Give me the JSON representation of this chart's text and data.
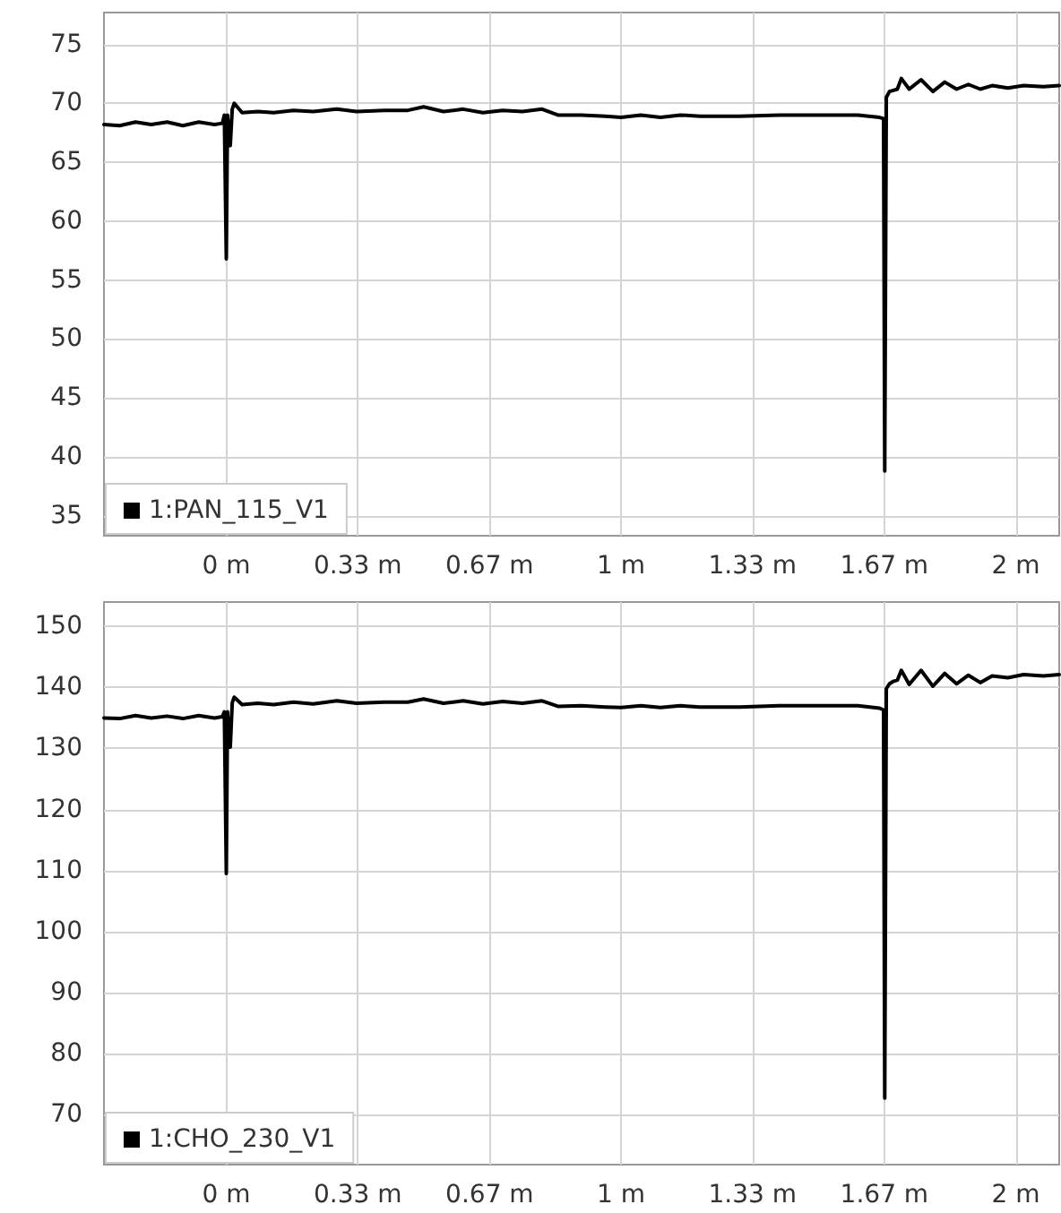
{
  "chart_data": [
    {
      "type": "line",
      "legend": "bottom left",
      "grid": true,
      "marker": "none",
      "xlim": [
        -0.31,
        2.11
      ],
      "ylim": [
        33.3,
        77.7
      ],
      "xticks": [
        {
          "value": 0,
          "label": "0 m"
        },
        {
          "value": 0.333,
          "label": "0.33 m"
        },
        {
          "value": 0.667,
          "label": "0.67 m"
        },
        {
          "value": 1,
          "label": "1 m"
        },
        {
          "value": 1.333,
          "label": "1.33 m"
        },
        {
          "value": 1.667,
          "label": "1.67 m"
        },
        {
          "value": 2,
          "label": "2 m"
        }
      ],
      "yticks": [
        35,
        40,
        45,
        50,
        55,
        60,
        65,
        70,
        75
      ],
      "x": [
        -0.31,
        -0.27,
        -0.23,
        -0.19,
        -0.15,
        -0.11,
        -0.07,
        -0.03,
        -0.01,
        -0.005,
        0.0,
        0.003,
        0.01,
        0.015,
        0.02,
        0.04,
        0.08,
        0.12,
        0.17,
        0.22,
        0.28,
        0.33,
        0.4,
        0.46,
        0.5,
        0.55,
        0.6,
        0.65,
        0.7,
        0.75,
        0.8,
        0.84,
        0.9,
        0.96,
        1.0,
        1.05,
        1.1,
        1.15,
        1.2,
        1.3,
        1.4,
        1.5,
        1.6,
        1.655,
        1.665,
        1.668,
        1.672,
        1.68,
        1.69,
        1.7,
        1.71,
        1.73,
        1.76,
        1.79,
        1.82,
        1.85,
        1.88,
        1.91,
        1.94,
        1.98,
        2.02,
        2.07,
        2.11
      ],
      "series": [
        {
          "name": "1:PAN_115_V1",
          "color": "#000000",
          "values": [
            68.2,
            68.1,
            68.4,
            68.2,
            68.4,
            68.1,
            68.4,
            68.2,
            68.3,
            69.0,
            56.8,
            69.0,
            66.4,
            69.5,
            70.0,
            69.2,
            69.3,
            69.2,
            69.4,
            69.3,
            69.5,
            69.3,
            69.4,
            69.4,
            69.7,
            69.3,
            69.5,
            69.2,
            69.4,
            69.3,
            69.5,
            69.0,
            69.0,
            68.9,
            68.8,
            69.0,
            68.8,
            69.0,
            68.9,
            68.9,
            69.0,
            69.0,
            69.0,
            68.8,
            68.7,
            38.8,
            70.5,
            71.0,
            71.1,
            71.2,
            72.1,
            71.2,
            72.0,
            71.0,
            71.8,
            71.2,
            71.6,
            71.2,
            71.5,
            71.3,
            71.5,
            71.4,
            71.5
          ]
        }
      ]
    },
    {
      "type": "line",
      "legend": "bottom left",
      "grid": true,
      "marker": "none",
      "xlim": [
        -0.31,
        2.11
      ],
      "ylim": [
        61.8,
        154
      ],
      "xticks": [
        {
          "value": 0,
          "label": "0 m"
        },
        {
          "value": 0.333,
          "label": "0.33 m"
        },
        {
          "value": 0.667,
          "label": "0.67 m"
        },
        {
          "value": 1,
          "label": "1 m"
        },
        {
          "value": 1.333,
          "label": "1.33 m"
        },
        {
          "value": 1.667,
          "label": "1.67 m"
        },
        {
          "value": 2,
          "label": "2 m"
        }
      ],
      "yticks": [
        70,
        80,
        90,
        100,
        110,
        120,
        130,
        140,
        150
      ],
      "x": [
        -0.31,
        -0.27,
        -0.23,
        -0.19,
        -0.15,
        -0.11,
        -0.07,
        -0.03,
        -0.01,
        -0.005,
        0.0,
        0.003,
        0.01,
        0.015,
        0.02,
        0.04,
        0.08,
        0.12,
        0.17,
        0.22,
        0.28,
        0.33,
        0.4,
        0.46,
        0.5,
        0.55,
        0.6,
        0.65,
        0.7,
        0.75,
        0.8,
        0.84,
        0.9,
        0.96,
        1.0,
        1.05,
        1.1,
        1.15,
        1.2,
        1.3,
        1.4,
        1.5,
        1.6,
        1.655,
        1.665,
        1.668,
        1.672,
        1.68,
        1.69,
        1.7,
        1.71,
        1.73,
        1.76,
        1.79,
        1.82,
        1.85,
        1.88,
        1.91,
        1.94,
        1.98,
        2.02,
        2.07,
        2.11
      ],
      "series": [
        {
          "name": "1:CHO_230_V1",
          "color": "#000000",
          "values": [
            135.0,
            134.9,
            135.4,
            135.0,
            135.3,
            134.9,
            135.4,
            135.0,
            135.2,
            136.0,
            109.5,
            136.0,
            130.2,
            137.5,
            138.4,
            137.2,
            137.4,
            137.2,
            137.6,
            137.3,
            137.8,
            137.4,
            137.6,
            137.6,
            138.1,
            137.4,
            137.8,
            137.3,
            137.7,
            137.4,
            137.8,
            136.9,
            137.0,
            136.8,
            136.7,
            137.0,
            136.7,
            137.0,
            136.8,
            136.8,
            137.0,
            137.0,
            137.0,
            136.6,
            136.3,
            72.7,
            139.8,
            140.6,
            141.0,
            141.2,
            142.8,
            140.5,
            142.8,
            140.2,
            142.3,
            140.6,
            142.0,
            140.8,
            141.9,
            141.6,
            142.1,
            141.9,
            142.1
          ]
        }
      ]
    }
  ]
}
